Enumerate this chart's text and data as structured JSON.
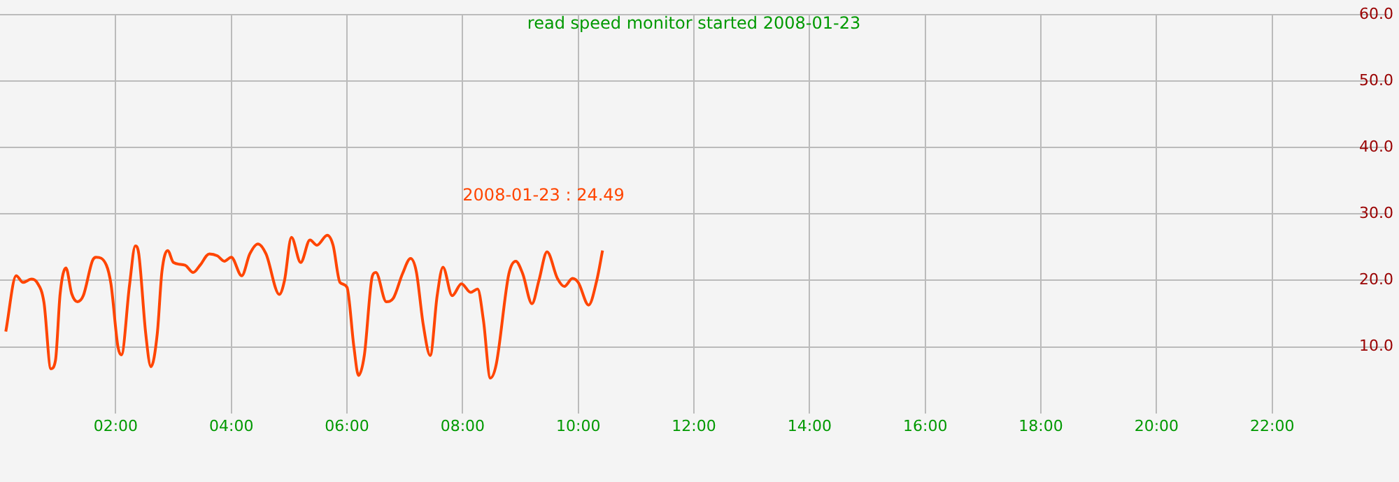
{
  "chart_data": {
    "type": "line",
    "title": "read speed monitor started 2008-01-23",
    "annotations": [
      "2008-01-23 : 24.49"
    ],
    "x": [
      0.1,
      0.28,
      0.4,
      0.54,
      0.64,
      0.76,
      0.88,
      0.96,
      1.04,
      1.14,
      1.24,
      1.34,
      1.44,
      1.6,
      1.66,
      1.84,
      1.92,
      2.04,
      2.1,
      2.24,
      2.34,
      2.4,
      2.52,
      2.61,
      2.72,
      2.8,
      2.9,
      3.0,
      3.2,
      3.34,
      3.46,
      3.62,
      3.76,
      3.88,
      4.0,
      4.18,
      4.32,
      4.46,
      4.6,
      4.83,
      4.92,
      5.04,
      5.2,
      5.36,
      5.48,
      5.66,
      5.76,
      5.88,
      6.0,
      6.12,
      6.2,
      6.3,
      6.44,
      6.5,
      6.68,
      6.8,
      6.96,
      7.1,
      7.2,
      7.32,
      7.44,
      7.56,
      7.66,
      7.82,
      7.98,
      8.14,
      8.26,
      8.36,
      8.48,
      8.58,
      8.8,
      8.92,
      9.04,
      9.2,
      9.32,
      9.46,
      9.64,
      9.76,
      9.9,
      10.0,
      10.18,
      10.32,
      10.42
    ],
    "series": [
      {
        "color": "#ff4500",
        "values": [
          12.3,
          20.7,
          19.7,
          20.2,
          19.7,
          16.7,
          6.7,
          8,
          18,
          21.9,
          18,
          16.8,
          17.7,
          23,
          23.5,
          22.3,
          19.4,
          10,
          8.8,
          19.3,
          25.2,
          24,
          12,
          7,
          12,
          21.3,
          24.5,
          22.7,
          22.3,
          21.2,
          22.3,
          24,
          23.7,
          22.9,
          23.5,
          20.7,
          24,
          25.5,
          24,
          17.9,
          20,
          26.5,
          22.7,
          26.1,
          25.3,
          26.8,
          25.3,
          19.7,
          19,
          10,
          5.7,
          8.7,
          20.7,
          21.2,
          16.8,
          17.3,
          21,
          23.3,
          21.3,
          13.3,
          8.7,
          17.7,
          22,
          17.7,
          19.5,
          18.2,
          18.7,
          14,
          5.3,
          7.3,
          21,
          22.9,
          21,
          16.5,
          20,
          24.3,
          20.3,
          19.1,
          20.3,
          19.7,
          16.3,
          20,
          24.5
        ]
      }
    ],
    "xlim": [
      0,
      24
    ],
    "xticks": [
      {
        "value": 2,
        "label": "02:00"
      },
      {
        "value": 4,
        "label": "04:00"
      },
      {
        "value": 6,
        "label": "06:00"
      },
      {
        "value": 8,
        "label": "08:00"
      },
      {
        "value": 10,
        "label": "10:00"
      },
      {
        "value": 12,
        "label": "12:00"
      },
      {
        "value": 14,
        "label": "14:00"
      },
      {
        "value": 16,
        "label": "16:00"
      },
      {
        "value": 18,
        "label": "18:00"
      },
      {
        "value": 20,
        "label": "20:00"
      },
      {
        "value": 22,
        "label": "22:00"
      }
    ],
    "ylim": [
      0,
      60
    ],
    "yticks": [
      {
        "value": 10,
        "label": "10.0"
      },
      {
        "value": 20,
        "label": "20.0"
      },
      {
        "value": 30,
        "label": "30.0"
      },
      {
        "value": 40,
        "label": "40.0"
      },
      {
        "value": 50,
        "label": "50.0"
      },
      {
        "value": 60,
        "label": "60.0"
      }
    ],
    "grid": true,
    "legend": false,
    "marker": "none",
    "line_style": "solid"
  }
}
